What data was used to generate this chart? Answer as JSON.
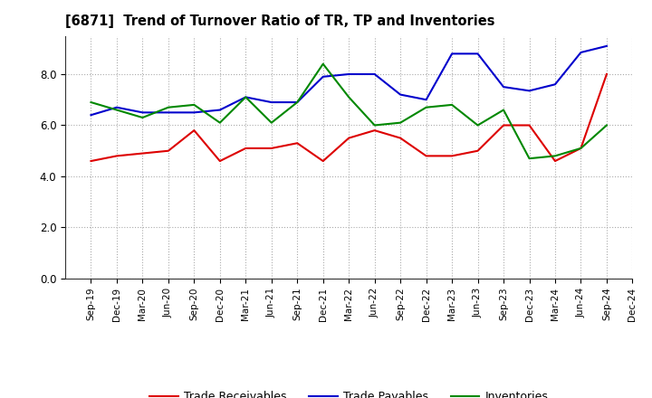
{
  "title": "[6871]  Trend of Turnover Ratio of TR, TP and Inventories",
  "labels": [
    "Sep-19",
    "Dec-19",
    "Mar-20",
    "Jun-20",
    "Sep-20",
    "Dec-20",
    "Mar-21",
    "Jun-21",
    "Sep-21",
    "Dec-21",
    "Mar-22",
    "Jun-22",
    "Sep-22",
    "Dec-22",
    "Mar-23",
    "Jun-23",
    "Sep-23",
    "Dec-23",
    "Mar-24",
    "Jun-24",
    "Sep-24",
    "Dec-24"
  ],
  "trade_receivables": [
    4.6,
    4.8,
    4.9,
    5.0,
    5.8,
    4.6,
    5.1,
    5.1,
    5.3,
    4.6,
    5.5,
    5.8,
    5.5,
    4.8,
    4.8,
    5.0,
    6.0,
    6.0,
    4.6,
    5.1,
    8.0,
    null
  ],
  "trade_payables": [
    6.4,
    6.7,
    6.5,
    6.5,
    6.5,
    6.6,
    7.1,
    6.9,
    6.9,
    7.9,
    8.0,
    8.0,
    7.2,
    7.0,
    8.8,
    8.8,
    7.5,
    7.35,
    7.6,
    8.85,
    9.1,
    null
  ],
  "inventories": [
    6.9,
    6.6,
    6.3,
    6.7,
    6.8,
    6.1,
    7.1,
    6.1,
    6.9,
    8.4,
    7.1,
    6.0,
    6.1,
    6.7,
    6.8,
    6.0,
    6.6,
    4.7,
    4.8,
    5.1,
    6.0,
    null
  ],
  "ylim": [
    0,
    9.5
  ],
  "yticks": [
    0.0,
    2.0,
    4.0,
    6.0,
    8.0
  ],
  "line_color_tr": "#dd0000",
  "line_color_tp": "#0000cc",
  "line_color_inv": "#008800",
  "legend_labels": [
    "Trade Receivables",
    "Trade Payables",
    "Inventories"
  ],
  "background_color": "#ffffff",
  "grid_color": "#aaaaaa"
}
